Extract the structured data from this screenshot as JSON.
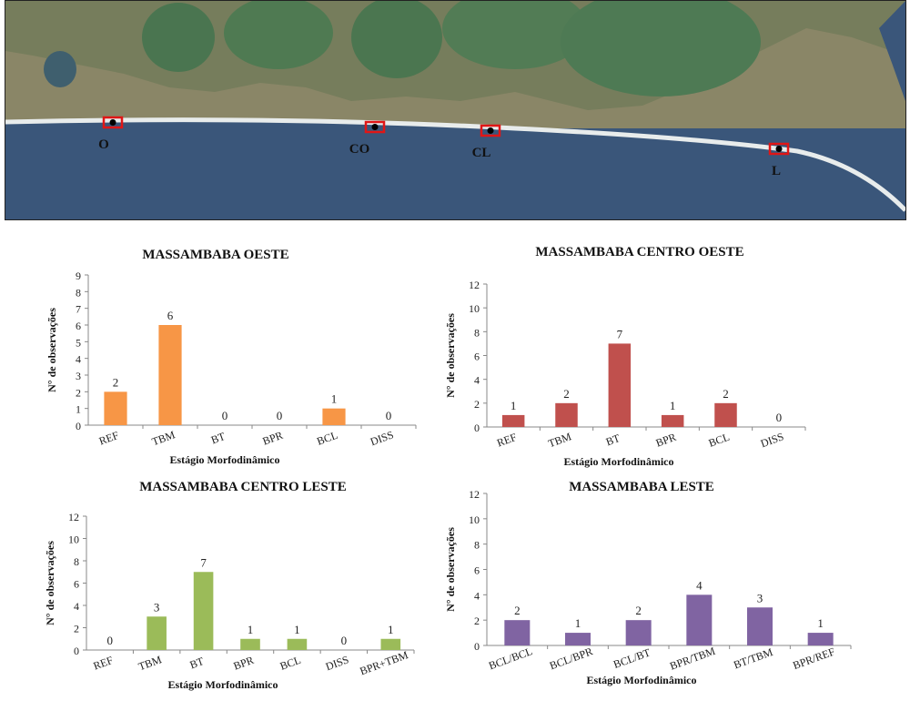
{
  "map": {
    "sites": [
      {
        "code": "O"
      },
      {
        "code": "CO"
      },
      {
        "code": "CL"
      },
      {
        "code": "L"
      }
    ],
    "colors": {
      "ocean": "#3a567a",
      "lagoon": "#4f7a52",
      "land": "#9c8f6d",
      "beach": "#e8ecec",
      "marker": "#e01616"
    }
  },
  "chart_data": [
    {
      "type": "bar",
      "title": "MASSAMBABA OESTE",
      "xlabel": "Estágio Morfodinâmico",
      "ylabel": "N° de observações",
      "ylim": [
        0,
        9
      ],
      "yticks": [
        0,
        1,
        2,
        3,
        4,
        5,
        6,
        7,
        8,
        9
      ],
      "categories": [
        "REF",
        "TBM",
        "BT",
        "BPR",
        "BCL",
        "DISS"
      ],
      "values": [
        2,
        6,
        0,
        0,
        1,
        0
      ],
      "color": "#f79646",
      "grid": false
    },
    {
      "type": "bar",
      "title": "MASSAMBABA CENTRO OESTE",
      "xlabel": "Estágio Morfodinâmico",
      "ylabel": "N° de observações",
      "ylim": [
        0,
        12
      ],
      "yticks": [
        0,
        2,
        4,
        6,
        8,
        10,
        12
      ],
      "categories": [
        "REF",
        "TBM",
        "BT",
        "BPR",
        "BCL",
        "DISS"
      ],
      "values": [
        1,
        2,
        7,
        1,
        2,
        0
      ],
      "color": "#c0504d",
      "grid": false
    },
    {
      "type": "bar",
      "title": "MASSAMBABA CENTRO LESTE",
      "xlabel": "Estágio Morfodinâmico",
      "ylabel": "N° de observações",
      "ylim": [
        0,
        12
      ],
      "yticks": [
        0,
        2,
        4,
        6,
        8,
        10,
        12
      ],
      "categories": [
        "REF",
        "TBM",
        "BT",
        "BPR",
        "BCL",
        "DISS",
        "BPR+TBM"
      ],
      "values": [
        0,
        3,
        7,
        1,
        1,
        0,
        1
      ],
      "color": "#9bbb59",
      "grid": false
    },
    {
      "type": "bar",
      "title": "MASSAMBABA LESTE",
      "xlabel": "Estágio Morfodinâmico",
      "ylabel": "N° de observações",
      "ylim": [
        0,
        12
      ],
      "yticks": [
        0,
        2,
        4,
        6,
        8,
        10,
        12
      ],
      "categories": [
        "BCL/BCL",
        "BCL/BPR",
        "BCL/BT",
        "BPR/TBM",
        "BT/TBM",
        "BPR/REF"
      ],
      "values": [
        2,
        1,
        2,
        4,
        3,
        1
      ],
      "color": "#8064a2",
      "grid": false
    }
  ]
}
